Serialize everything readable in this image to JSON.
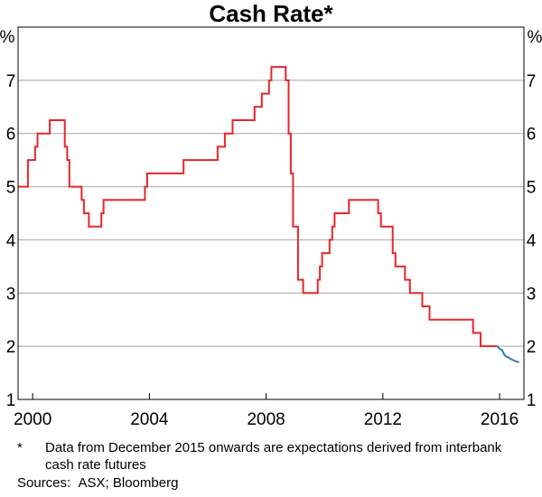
{
  "chart_data": {
    "type": "line",
    "title": "Cash Rate*",
    "y_unit_left": "%",
    "y_unit_right": "%",
    "ylim": [
      1,
      8
    ],
    "yticks": [
      1,
      2,
      3,
      4,
      5,
      6,
      7
    ],
    "xlim": [
      "1999-07-01",
      "2016-11-01"
    ],
    "xticks": [
      "2000",
      "2004",
      "2008",
      "2012",
      "2016"
    ],
    "grid": true,
    "series": [
      {
        "color": "#e8262a",
        "step": true,
        "points": [
          [
            "1999-07-01",
            5.0
          ],
          [
            "1999-11-03",
            5.5
          ],
          [
            "2000-02-02",
            5.75
          ],
          [
            "2000-03-01",
            6.0
          ],
          [
            "2000-05-03",
            6.0
          ],
          [
            "2000-08-02",
            6.25
          ],
          [
            "2001-02-07",
            5.75
          ],
          [
            "2001-03-07",
            5.5
          ],
          [
            "2001-04-04",
            5.0
          ],
          [
            "2001-09-05",
            4.75
          ],
          [
            "2001-10-03",
            4.5
          ],
          [
            "2001-12-05",
            4.25
          ],
          [
            "2002-05-08",
            4.5
          ],
          [
            "2002-06-05",
            4.75
          ],
          [
            "2003-11-05",
            5.0
          ],
          [
            "2003-12-03",
            5.25
          ],
          [
            "2005-03-02",
            5.5
          ],
          [
            "2006-05-03",
            5.75
          ],
          [
            "2006-08-02",
            6.0
          ],
          [
            "2006-11-08",
            6.25
          ],
          [
            "2007-08-08",
            6.5
          ],
          [
            "2007-11-07",
            6.75
          ],
          [
            "2008-02-06",
            7.0
          ],
          [
            "2008-03-05",
            7.25
          ],
          [
            "2008-09-03",
            7.0
          ],
          [
            "2008-10-08",
            6.0
          ],
          [
            "2008-11-05",
            5.25
          ],
          [
            "2008-12-03",
            4.25
          ],
          [
            "2009-02-04",
            3.25
          ],
          [
            "2009-04-08",
            3.0
          ],
          [
            "2009-10-07",
            3.25
          ],
          [
            "2009-11-04",
            3.5
          ],
          [
            "2009-12-02",
            3.75
          ],
          [
            "2010-03-03",
            4.0
          ],
          [
            "2010-04-07",
            4.25
          ],
          [
            "2010-05-05",
            4.5
          ],
          [
            "2010-11-03",
            4.75
          ],
          [
            "2011-11-02",
            4.5
          ],
          [
            "2011-12-07",
            4.25
          ],
          [
            "2012-05-02",
            3.75
          ],
          [
            "2012-06-06",
            3.5
          ],
          [
            "2012-10-03",
            3.25
          ],
          [
            "2012-12-05",
            3.0
          ],
          [
            "2013-05-08",
            2.75
          ],
          [
            "2013-08-07",
            2.5
          ],
          [
            "2015-02-04",
            2.25
          ],
          [
            "2015-05-06",
            2.0
          ],
          [
            "2015-12-01",
            2.0
          ]
        ]
      },
      {
        "color": "#2f78c4",
        "step": false,
        "points": [
          [
            "2015-12-01",
            2.0
          ],
          [
            "2016-01-01",
            1.95
          ],
          [
            "2016-02-01",
            1.93
          ],
          [
            "2016-03-01",
            1.83
          ],
          [
            "2016-04-01",
            1.8
          ],
          [
            "2016-05-01",
            1.78
          ],
          [
            "2016-06-01",
            1.75
          ],
          [
            "2016-07-01",
            1.73
          ],
          [
            "2016-08-01",
            1.71
          ],
          [
            "2016-09-01",
            1.7
          ]
        ]
      }
    ]
  },
  "footnote": {
    "marker": "*",
    "text": "Data from December 2015 onwards are expectations derived from interbank cash rate futures"
  },
  "sources": "Sources:  ASX; Bloomberg"
}
